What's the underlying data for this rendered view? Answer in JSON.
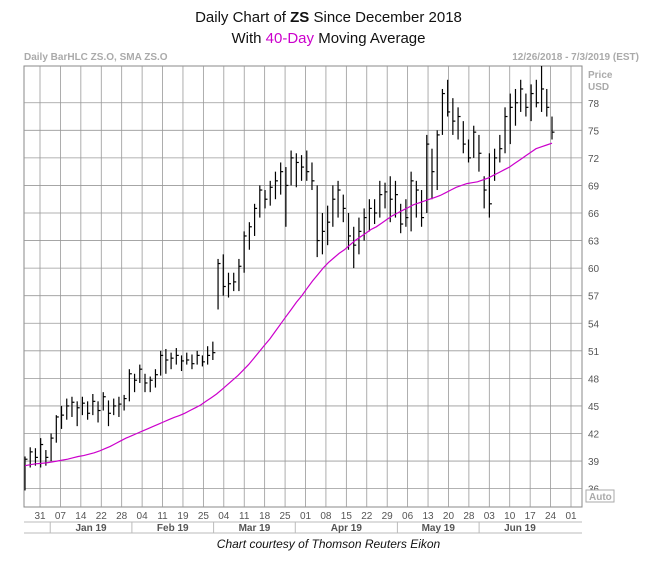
{
  "title_parts": {
    "prefix": "Daily Chart of ",
    "ticker": "ZS",
    "suffix": " Since December 2018",
    "line2_prefix": "With ",
    "line2_highlight": "40-Day",
    "line2_suffix": " Moving Average"
  },
  "header_left": "Daily BarHLC ZS.O, SMA ZS.O",
  "header_right": "12/26/2018 - 7/3/2019 (EST)",
  "credit": "Chart courtesy of Thomson Reuters Eikon",
  "colors": {
    "price_bar": "#000000",
    "sma": "#cc00cc",
    "grid": "#999999",
    "title_highlight": "#cc00cc"
  },
  "chart_data": {
    "type": "bar",
    "subtype": "ohlc-hlc",
    "title": "Daily Chart of ZS Since December 2018 With 40-Day Moving Average",
    "ylabel": "Price USD",
    "ylim": [
      34,
      82
    ],
    "y_ticks": [
      36,
      39,
      42,
      45,
      48,
      51,
      54,
      57,
      60,
      63,
      66,
      69,
      72,
      75,
      78
    ],
    "y_scale_label": "Auto",
    "x_ticks": [
      "31",
      "07",
      "14",
      "22",
      "28",
      "04",
      "11",
      "19",
      "25",
      "04",
      "11",
      "18",
      "25",
      "01",
      "08",
      "15",
      "22",
      "29",
      "06",
      "13",
      "20",
      "28",
      "03",
      "10",
      "17",
      "24",
      "01"
    ],
    "month_labels": [
      "Jan 19",
      "Feb 19",
      "Mar 19",
      "Apr 19",
      "May 19",
      "Jun 19"
    ],
    "grid": true,
    "series": [
      {
        "type": "hlc",
        "bars": [
          [
            39.5,
            35.8,
            39.2
          ],
          [
            40.5,
            38.3,
            40.0
          ],
          [
            40.4,
            38.5,
            39.4
          ],
          [
            41.5,
            38.3,
            40.8
          ],
          [
            40.2,
            38.5,
            39.4
          ],
          [
            42.0,
            39.0,
            41.5
          ],
          [
            44.0,
            41.0,
            43.8
          ],
          [
            45.0,
            42.5,
            44.0
          ],
          [
            45.8,
            43.5,
            45.0
          ],
          [
            46.0,
            43.8,
            45.4
          ],
          [
            45.5,
            42.8,
            44.8
          ],
          [
            46.0,
            44.0,
            45.3
          ],
          [
            45.5,
            43.5,
            44.2
          ],
          [
            46.3,
            44.0,
            45.5
          ],
          [
            45.5,
            43.2,
            44.5
          ],
          [
            46.5,
            44.5,
            46.0
          ],
          [
            45.6,
            42.8,
            44.2
          ],
          [
            45.8,
            44.0,
            45.0
          ],
          [
            46.0,
            43.8,
            45.2
          ],
          [
            46.2,
            44.5,
            45.8
          ],
          [
            49.0,
            45.5,
            48.5
          ],
          [
            48.5,
            46.5,
            47.8
          ],
          [
            49.5,
            47.5,
            49.0
          ],
          [
            48.5,
            46.5,
            47.5
          ],
          [
            48.2,
            46.5,
            47.8
          ],
          [
            49.0,
            47.0,
            48.4
          ],
          [
            51.0,
            48.3,
            50.5
          ],
          [
            51.2,
            48.5,
            50.0
          ],
          [
            50.8,
            49.0,
            50.2
          ],
          [
            51.3,
            49.5,
            50.5
          ],
          [
            50.5,
            48.8,
            49.9
          ],
          [
            50.8,
            49.5,
            50.0
          ],
          [
            50.6,
            49.0,
            49.6
          ],
          [
            51.0,
            49.5,
            50.5
          ],
          [
            50.5,
            49.3,
            49.8
          ],
          [
            51.5,
            49.5,
            50.5
          ],
          [
            52.0,
            50.0,
            50.8
          ],
          [
            61.0,
            55.5,
            60.5
          ],
          [
            61.5,
            57.0,
            58.0
          ],
          [
            59.5,
            56.8,
            58.3
          ],
          [
            59.5,
            57.5,
            58.5
          ],
          [
            61.0,
            57.5,
            60.2
          ],
          [
            64.0,
            59.5,
            63.5
          ],
          [
            65.0,
            62.0,
            64.5
          ],
          [
            67.0,
            63.5,
            66.5
          ],
          [
            69.0,
            65.5,
            68.5
          ],
          [
            68.5,
            66.5,
            67.5
          ],
          [
            69.5,
            66.8,
            68.8
          ],
          [
            70.5,
            67.5,
            69.5
          ],
          [
            71.5,
            68.0,
            70.5
          ],
          [
            71.0,
            64.5,
            69.0
          ],
          [
            72.8,
            69.0,
            72.0
          ],
          [
            72.5,
            68.8,
            71.5
          ],
          [
            72.3,
            69.5,
            71.0
          ],
          [
            72.8,
            69.5,
            70.5
          ],
          [
            71.5,
            68.5,
            69.5
          ],
          [
            69.0,
            61.2,
            63.0
          ],
          [
            66.0,
            61.5,
            64.0
          ],
          [
            66.8,
            62.5,
            65.0
          ],
          [
            69.0,
            64.5,
            67.5
          ],
          [
            69.5,
            65.5,
            68.5
          ],
          [
            68.0,
            65.0,
            66.5
          ],
          [
            66.0,
            62.0,
            63.5
          ],
          [
            64.5,
            60.0,
            62.5
          ],
          [
            65.5,
            61.5,
            64.0
          ],
          [
            66.5,
            63.0,
            65.5
          ],
          [
            67.5,
            64.0,
            66.5
          ],
          [
            67.5,
            64.8,
            66.0
          ],
          [
            69.5,
            65.5,
            68.0
          ],
          [
            69.3,
            66.5,
            68.3
          ],
          [
            70.0,
            65.0,
            67.5
          ],
          [
            69.5,
            65.5,
            68.0
          ],
          [
            67.0,
            63.8,
            64.8
          ],
          [
            67.5,
            64.5,
            65.5
          ],
          [
            70.5,
            64.0,
            69.5
          ],
          [
            69.5,
            65.5,
            68.5
          ],
          [
            68.5,
            64.5,
            65.5
          ],
          [
            74.5,
            66.0,
            73.5
          ],
          [
            73.0,
            67.5,
            70.5
          ],
          [
            75.0,
            68.5,
            74.5
          ],
          [
            79.5,
            74.5,
            79.0
          ],
          [
            80.5,
            76.5,
            77.0
          ],
          [
            78.5,
            74.5,
            76.0
          ],
          [
            77.5,
            74.0,
            76.5
          ],
          [
            76.0,
            72.5,
            73.5
          ],
          [
            74.0,
            71.5,
            72.0
          ],
          [
            75.5,
            72.0,
            74.8
          ],
          [
            74.5,
            70.5,
            72.5
          ],
          [
            70.0,
            66.5,
            68.5
          ],
          [
            72.5,
            65.5,
            67.0
          ],
          [
            73.0,
            69.5,
            72.0
          ],
          [
            74.5,
            71.5,
            73.0
          ],
          [
            77.5,
            72.5,
            76.5
          ],
          [
            79.0,
            73.5,
            77.5
          ],
          [
            79.5,
            75.5,
            78.0
          ],
          [
            80.5,
            77.0,
            79.5
          ],
          [
            79.0,
            76.5,
            77.5
          ],
          [
            80.0,
            76.0,
            79.0
          ],
          [
            80.5,
            77.5,
            78.0
          ],
          [
            82.0,
            77.0,
            79.5
          ],
          [
            79.5,
            76.5,
            77.5
          ],
          [
            76.5,
            74.0,
            74.8
          ]
        ]
      },
      {
        "type": "line",
        "values": [
          38.5,
          38.6,
          38.7,
          38.75,
          38.8,
          38.9,
          39.0,
          39.1,
          39.2,
          39.35,
          39.5,
          39.6,
          39.75,
          39.9,
          40.1,
          40.35,
          40.6,
          40.9,
          41.2,
          41.5,
          41.75,
          42.0,
          42.25,
          42.5,
          42.75,
          43.0,
          43.25,
          43.5,
          43.75,
          43.95,
          44.2,
          44.5,
          44.8,
          45.1,
          45.5,
          45.9,
          46.3,
          46.8,
          47.3,
          47.8,
          48.3,
          48.9,
          49.5,
          50.2,
          50.9,
          51.6,
          52.3,
          53.1,
          53.9,
          54.7,
          55.5,
          56.3,
          57.0,
          57.8,
          58.6,
          59.3,
          60.0,
          60.6,
          61.1,
          61.6,
          62.0,
          62.5,
          63.0,
          63.4,
          63.8,
          64.2,
          64.5,
          64.9,
          65.3,
          65.7,
          66.0,
          66.3,
          66.6,
          66.9,
          67.1,
          67.3,
          67.5,
          67.7,
          67.9,
          68.2,
          68.5,
          68.8,
          69.0,
          69.2,
          69.3,
          69.4,
          69.6,
          69.8,
          70.1,
          70.4,
          70.7,
          71.0,
          71.4,
          71.8,
          72.2,
          72.6,
          73.0,
          73.2,
          73.4,
          73.6
        ]
      }
    ]
  }
}
